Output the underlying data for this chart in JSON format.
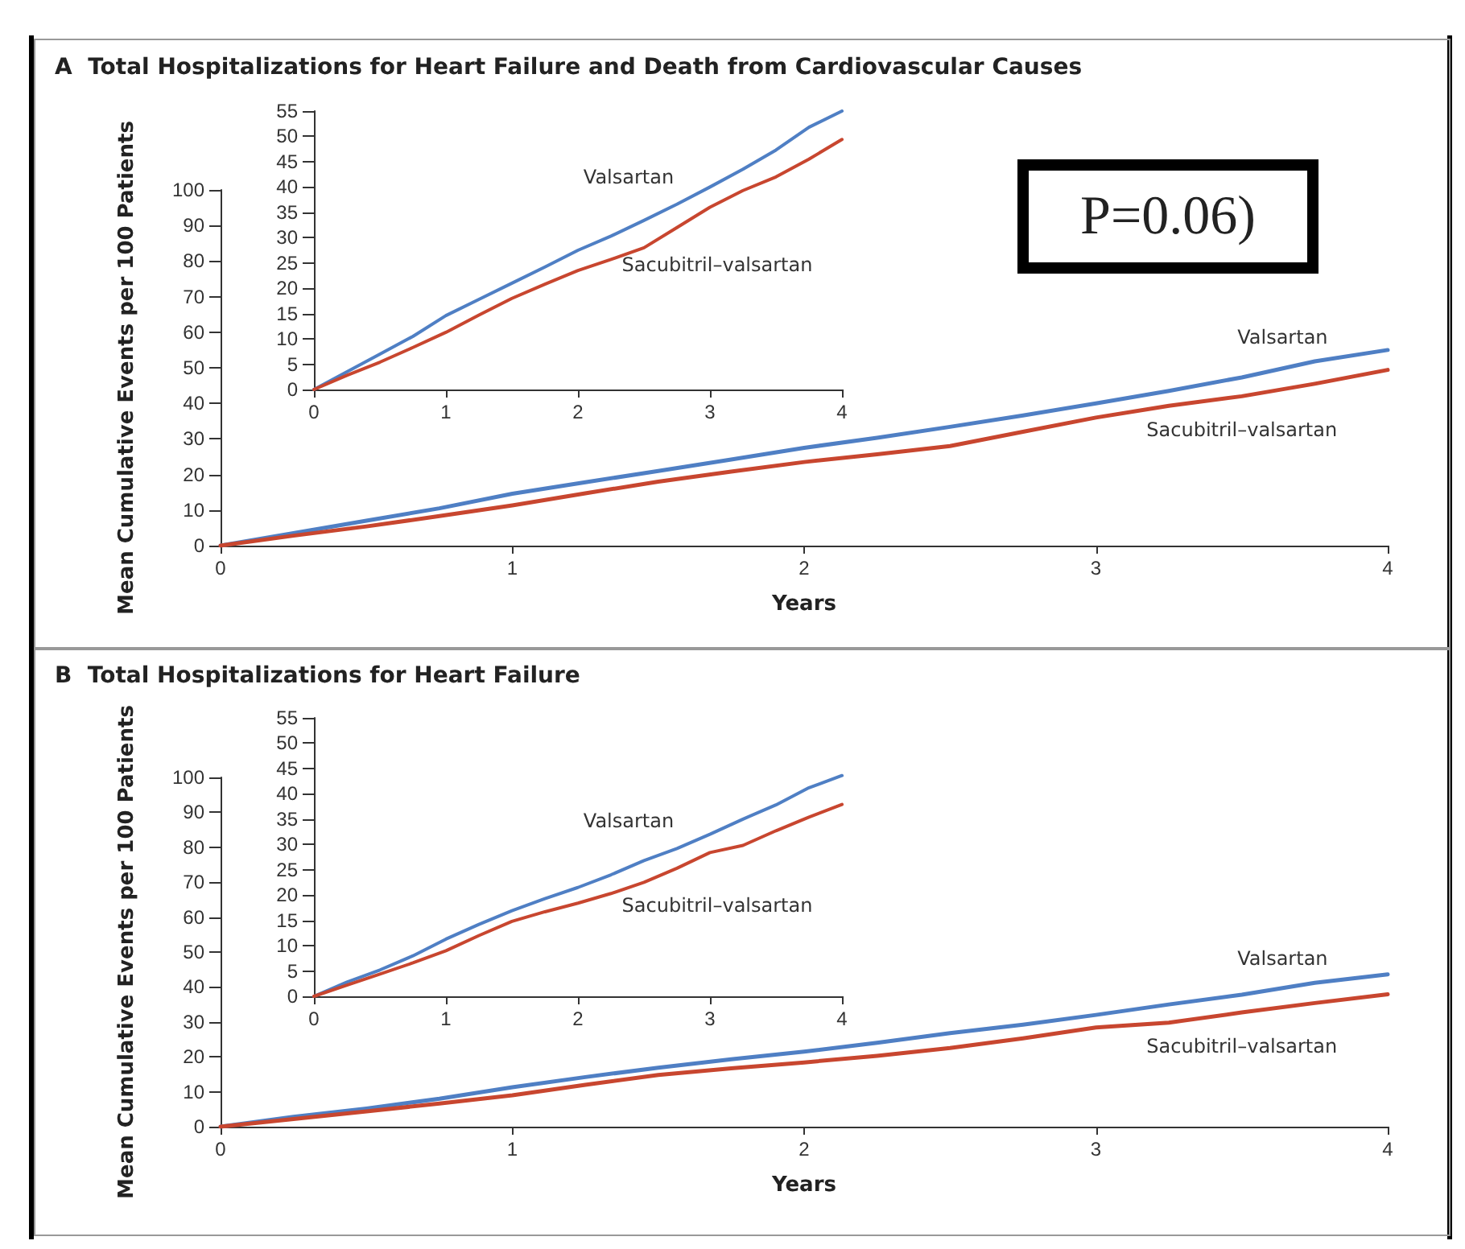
{
  "chart_data": [
    {
      "type": "line",
      "title": "A  Total Hospitalizations for Heart Failure and Death from Cardiovascular Causes",
      "xlabel": "Years",
      "ylabel": "Mean Cumulative Events per 100 Patients",
      "annotations": [
        "P=0.06)"
      ],
      "x": [
        0,
        0.25,
        0.5,
        0.75,
        1,
        1.25,
        1.5,
        1.75,
        2,
        2.25,
        2.5,
        2.75,
        3,
        3.25,
        3.5,
        3.75,
        4
      ],
      "xlim": [
        0,
        4
      ],
      "xticks": [
        0,
        1,
        2,
        3,
        4
      ],
      "ylim": [
        0,
        100
      ],
      "yticks": [
        0,
        10,
        20,
        30,
        40,
        50,
        60,
        70,
        80,
        90,
        100
      ],
      "grid": false,
      "legend": false,
      "marker": "none",
      "line_style": "solid",
      "series": [
        {
          "name": "Valsartan",
          "color": "#4f7fc4",
          "values": [
            0,
            3.5,
            7,
            10.5,
            14.6,
            17.8,
            21,
            24.2,
            27.5,
            30.3,
            33.4,
            36.6,
            40,
            43.5,
            47.3,
            51.8,
            55
          ]
        },
        {
          "name": "Sacubitril–valsartan",
          "color": "#c8462f",
          "values": [
            0,
            2.8,
            5.4,
            8.3,
            11.3,
            14.7,
            18,
            20.8,
            23.5,
            25.7,
            28,
            32,
            36,
            39.3,
            42,
            45.5,
            49.4
          ]
        }
      ]
    },
    {
      "type": "line",
      "x": [
        0,
        0.25,
        0.5,
        0.75,
        1,
        1.25,
        1.5,
        1.75,
        2,
        2.25,
        2.5,
        2.75,
        3,
        3.25,
        3.5,
        3.75,
        4
      ],
      "xlim": [
        0,
        4
      ],
      "xticks": [
        0,
        1,
        2,
        3,
        4
      ],
      "ylim": [
        0,
        55
      ],
      "yticks": [
        0,
        5,
        10,
        15,
        20,
        25,
        30,
        35,
        40,
        45,
        50,
        55
      ],
      "grid": false,
      "legend": false,
      "marker": "none",
      "line_style": "solid",
      "series": [
        {
          "name": "Valsartan",
          "color": "#4f7fc4",
          "values": [
            0,
            3.5,
            7,
            10.5,
            14.6,
            17.8,
            21,
            24.2,
            27.5,
            30.3,
            33.4,
            36.6,
            40,
            43.5,
            47.3,
            51.8,
            55
          ]
        },
        {
          "name": "Sacubitril–valsartan",
          "color": "#c8462f",
          "values": [
            0,
            2.8,
            5.4,
            8.3,
            11.3,
            14.7,
            18,
            20.8,
            23.5,
            25.7,
            28,
            32,
            36,
            39.3,
            42,
            45.5,
            49.4
          ]
        }
      ]
    },
    {
      "type": "line",
      "title": "B  Total Hospitalizations for Heart Failure",
      "xlabel": "Years",
      "ylabel": "Mean Cumulative Events per 100 Patients",
      "x": [
        0,
        0.25,
        0.5,
        0.75,
        1,
        1.25,
        1.5,
        1.75,
        2,
        2.25,
        2.5,
        2.75,
        3,
        3.25,
        3.5,
        3.75,
        4
      ],
      "xlim": [
        0,
        4
      ],
      "xticks": [
        0,
        1,
        2,
        3,
        4
      ],
      "ylim": [
        0,
        100
      ],
      "yticks": [
        0,
        10,
        20,
        30,
        40,
        50,
        60,
        70,
        80,
        90,
        100
      ],
      "grid": false,
      "legend": false,
      "marker": "none",
      "line_style": "solid",
      "series": [
        {
          "name": "Valsartan",
          "color": "#4f7fc4",
          "values": [
            0,
            2.8,
            5.2,
            8,
            11.3,
            14.2,
            16.9,
            19.3,
            21.5,
            24,
            26.8,
            29.2,
            32,
            35,
            37.8,
            41.2,
            43.6
          ]
        },
        {
          "name": "Sacubitril–valsartan",
          "color": "#c8462f",
          "values": [
            0,
            2.2,
            4.4,
            6.6,
            9,
            12,
            14.8,
            16.7,
            18.4,
            20.3,
            22.5,
            25.3,
            28.4,
            29.8,
            32.7,
            35.4,
            37.9
          ]
        }
      ]
    },
    {
      "type": "line",
      "x": [
        0,
        0.25,
        0.5,
        0.75,
        1,
        1.25,
        1.5,
        1.75,
        2,
        2.25,
        2.5,
        2.75,
        3,
        3.25,
        3.5,
        3.75,
        4
      ],
      "xlim": [
        0,
        4
      ],
      "xticks": [
        0,
        1,
        2,
        3,
        4
      ],
      "ylim": [
        0,
        55
      ],
      "yticks": [
        0,
        5,
        10,
        15,
        20,
        25,
        30,
        35,
        40,
        45,
        50,
        55
      ],
      "grid": false,
      "legend": false,
      "marker": "none",
      "line_style": "solid",
      "series": [
        {
          "name": "Valsartan",
          "color": "#4f7fc4",
          "values": [
            0,
            2.8,
            5.2,
            8,
            11.3,
            14.2,
            16.9,
            19.3,
            21.5,
            24,
            26.8,
            29.2,
            32,
            35,
            37.8,
            41.2,
            43.6
          ]
        },
        {
          "name": "Sacubitril–valsartan",
          "color": "#c8462f",
          "values": [
            0,
            2.2,
            4.4,
            6.6,
            9,
            12,
            14.8,
            16.7,
            18.4,
            20.3,
            22.5,
            25.3,
            28.4,
            29.8,
            32.7,
            35.4,
            37.9
          ]
        }
      ]
    }
  ]
}
